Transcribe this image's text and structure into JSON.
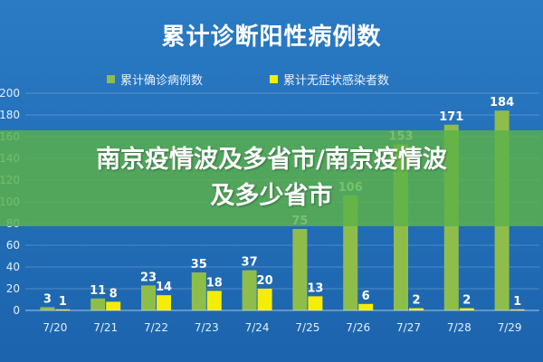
{
  "title": "累计诊断阳性病例数",
  "banner": {
    "line1": "南京疫情波及多省市/南京疫情波",
    "line2": "及多少省市"
  },
  "colors": {
    "background": "#1f6bb4",
    "confirmed": "#8fbd4a",
    "asymptomatic": "#f5ec0a",
    "banner": "#5cb248"
  },
  "chart_data": {
    "type": "bar",
    "categories": [
      "7/20",
      "7/21",
      "7/22",
      "7/23",
      "7/24",
      "7/25",
      "7/26",
      "7/27",
      "7/28",
      "7/29"
    ],
    "series": [
      {
        "name": "累计确诊病例数",
        "values": [
          3,
          11,
          23,
          35,
          37,
          75,
          106,
          153,
          171,
          184
        ]
      },
      {
        "name": "累计无症状感染者数",
        "values": [
          1,
          8,
          14,
          18,
          20,
          13,
          6,
          2,
          2,
          1
        ]
      }
    ],
    "ylim": [
      0,
      200
    ],
    "yticks": [
      0,
      20,
      40,
      60,
      80,
      100,
      120,
      140,
      160,
      180,
      200
    ],
    "grid": true,
    "legend_position": "top"
  }
}
